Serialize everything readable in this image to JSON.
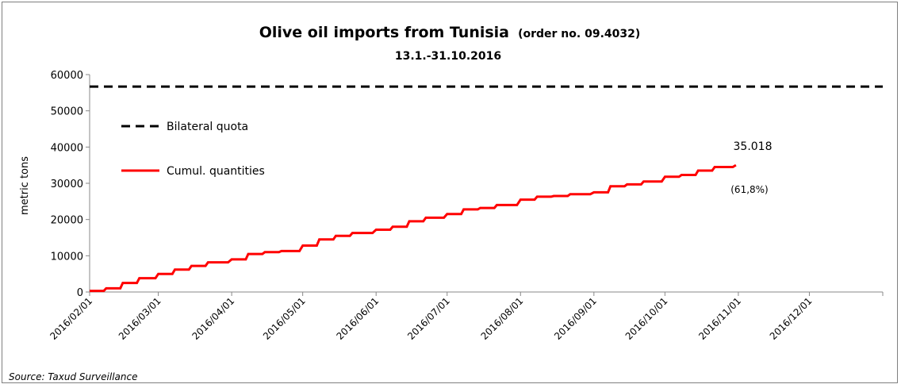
{
  "chart_data": {
    "type": "line",
    "title": "Olive oil imports from Tunisia",
    "title_suffix": "(order no. 09.4032)",
    "subtitle": "13.1.-31.10.2016",
    "ylabel": "metric tons",
    "ylim": [
      0,
      60000
    ],
    "y_ticks": [
      "0",
      "10000",
      "20000",
      "30000",
      "40000",
      "50000",
      "60000"
    ],
    "y_tick_values": [
      0,
      10000,
      20000,
      30000,
      40000,
      50000,
      60000
    ],
    "x_ticks": [
      "2016/02/01",
      "2016/03/01",
      "2016/04/01",
      "2016/05/01",
      "2016/06/01",
      "2016/07/01",
      "2016/08/01",
      "2016/09/01",
      "2016/10/01",
      "2016/11/01",
      "2016/12/01"
    ],
    "x_range": [
      "2016/02/01",
      "2017/01/01"
    ],
    "grid": false,
    "legend_position": "top-left",
    "series": [
      {
        "name": "Bilateral quota",
        "style": "dashed",
        "color": "#000000",
        "x": [
          "2016/02/01",
          "2017/01/01"
        ],
        "values": [
          56700,
          56700
        ]
      },
      {
        "name": "Cumul. quantities",
        "style": "solid",
        "color": "#ff0000",
        "x": [
          "2016/02/01",
          "2016/02/08",
          "2016/02/15",
          "2016/02/22",
          "2016/03/01",
          "2016/03/08",
          "2016/03/15",
          "2016/03/22",
          "2016/04/01",
          "2016/04/08",
          "2016/04/15",
          "2016/04/22",
          "2016/05/01",
          "2016/05/08",
          "2016/05/15",
          "2016/05/22",
          "2016/06/01",
          "2016/06/08",
          "2016/06/15",
          "2016/06/22",
          "2016/07/01",
          "2016/07/08",
          "2016/07/15",
          "2016/07/22",
          "2016/08/01",
          "2016/08/08",
          "2016/08/15",
          "2016/08/22",
          "2016/09/01",
          "2016/09/08",
          "2016/09/15",
          "2016/09/22",
          "2016/10/01",
          "2016/10/08",
          "2016/10/15",
          "2016/10/22",
          "2016/10/31"
        ],
        "values": [
          300,
          1000,
          2500,
          3800,
          5000,
          6200,
          7200,
          8200,
          9000,
          10500,
          11000,
          11300,
          12800,
          14500,
          15500,
          16300,
          17200,
          18000,
          19500,
          20500,
          21500,
          22800,
          23200,
          24000,
          25500,
          26300,
          26500,
          27000,
          27500,
          29200,
          29700,
          30500,
          31800,
          32300,
          33500,
          34500,
          35018
        ]
      }
    ],
    "annotations": {
      "last_value": "35.018",
      "last_percent": "(61,8%)"
    },
    "source": "Source: Taxud Surveillance"
  }
}
